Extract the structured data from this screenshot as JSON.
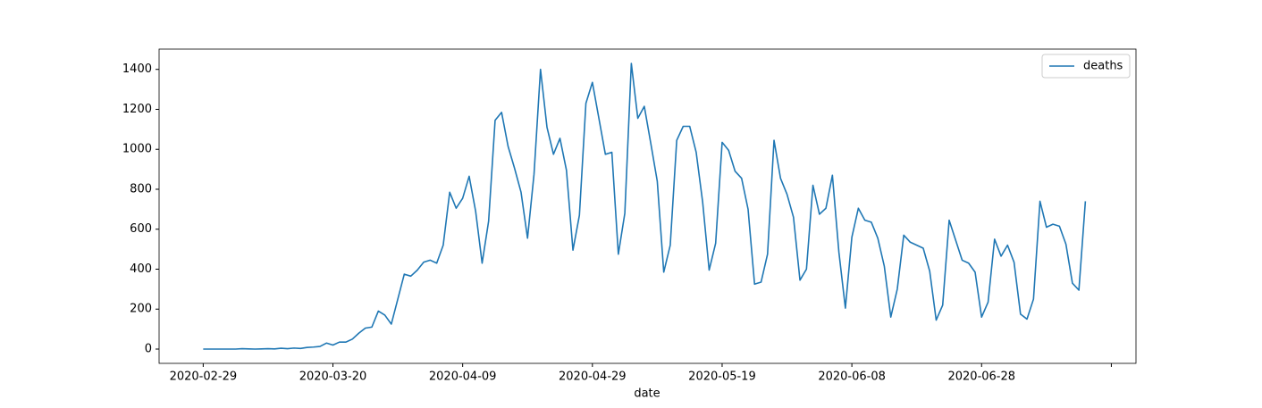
{
  "chart_data": {
    "type": "line",
    "xlabel": "date",
    "x": [
      "2020-02-29",
      "2020-03-01",
      "2020-03-02",
      "2020-03-03",
      "2020-03-04",
      "2020-03-05",
      "2020-03-06",
      "2020-03-07",
      "2020-03-08",
      "2020-03-09",
      "2020-03-10",
      "2020-03-11",
      "2020-03-12",
      "2020-03-13",
      "2020-03-14",
      "2020-03-15",
      "2020-03-16",
      "2020-03-17",
      "2020-03-18",
      "2020-03-19",
      "2020-03-20",
      "2020-03-21",
      "2020-03-22",
      "2020-03-23",
      "2020-03-24",
      "2020-03-25",
      "2020-03-26",
      "2020-03-27",
      "2020-03-28",
      "2020-03-29",
      "2020-03-30",
      "2020-03-31",
      "2020-04-01",
      "2020-04-02",
      "2020-04-03",
      "2020-04-04",
      "2020-04-05",
      "2020-04-06",
      "2020-04-07",
      "2020-04-08",
      "2020-04-09",
      "2020-04-10",
      "2020-04-11",
      "2020-04-12",
      "2020-04-13",
      "2020-04-14",
      "2020-04-15",
      "2020-04-16",
      "2020-04-17",
      "2020-04-18",
      "2020-04-19",
      "2020-04-20",
      "2020-04-21",
      "2020-04-22",
      "2020-04-23",
      "2020-04-24",
      "2020-04-25",
      "2020-04-26",
      "2020-04-27",
      "2020-04-28",
      "2020-04-29",
      "2020-04-30",
      "2020-05-01",
      "2020-05-02",
      "2020-05-03",
      "2020-05-04",
      "2020-05-05",
      "2020-05-06",
      "2020-05-07",
      "2020-05-08",
      "2020-05-09",
      "2020-05-10",
      "2020-05-11",
      "2020-05-12",
      "2020-05-13",
      "2020-05-14",
      "2020-05-15",
      "2020-05-16",
      "2020-05-17",
      "2020-05-18",
      "2020-05-19",
      "2020-05-20",
      "2020-05-21",
      "2020-05-22",
      "2020-05-23",
      "2020-05-24",
      "2020-05-25",
      "2020-05-26",
      "2020-05-27",
      "2020-05-28",
      "2020-05-29",
      "2020-05-30",
      "2020-05-31",
      "2020-06-01",
      "2020-06-02",
      "2020-06-03",
      "2020-06-04",
      "2020-06-05",
      "2020-06-06",
      "2020-06-07",
      "2020-06-08",
      "2020-06-09",
      "2020-06-10",
      "2020-06-11",
      "2020-06-12",
      "2020-06-13",
      "2020-06-14",
      "2020-06-15",
      "2020-06-16",
      "2020-06-17",
      "2020-06-18",
      "2020-06-19",
      "2020-06-20",
      "2020-06-21",
      "2020-06-22",
      "2020-06-23",
      "2020-06-24",
      "2020-06-25",
      "2020-06-26",
      "2020-06-27",
      "2020-06-28",
      "2020-06-29",
      "2020-06-30",
      "2020-07-01",
      "2020-07-02",
      "2020-07-03",
      "2020-07-04",
      "2020-07-05",
      "2020-07-06",
      "2020-07-07",
      "2020-07-08",
      "2020-07-09",
      "2020-07-10",
      "2020-07-11",
      "2020-07-12",
      "2020-07-13",
      "2020-07-14"
    ],
    "series": [
      {
        "name": "deaths",
        "color": "#1f77b4",
        "values": [
          0,
          0,
          0,
          0,
          0,
          0,
          2,
          1,
          0,
          1,
          2,
          1,
          4,
          2,
          5,
          3,
          8,
          10,
          13,
          30,
          20,
          35,
          35,
          50,
          80,
          105,
          110,
          190,
          170,
          125,
          250,
          375,
          365,
          395,
          435,
          445,
          430,
          520,
          785,
          705,
          755,
          865,
          690,
          430,
          640,
          1145,
          1185,
          1015,
          905,
          785,
          555,
          875,
          1400,
          1110,
          975,
          1055,
          895,
          495,
          670,
          1230,
          1335,
          1155,
          975,
          985,
          475,
          680,
          1430,
          1155,
          1215,
          1030,
          840,
          385,
          520,
          1045,
          1115,
          1115,
          985,
          735,
          395,
          530,
          1035,
          995,
          890,
          855,
          700,
          325,
          335,
          475,
          1045,
          855,
          775,
          660,
          345,
          400,
          820,
          675,
          705,
          870,
          485,
          205,
          560,
          705,
          645,
          635,
          555,
          415,
          160,
          300,
          570,
          535,
          520,
          505,
          390,
          145,
          220,
          645,
          545,
          445,
          430,
          385,
          160,
          235,
          550,
          465,
          520,
          435,
          175,
          150,
          250,
          740,
          610,
          625,
          615,
          525,
          330,
          295,
          740
        ]
      }
    ],
    "xlim": [
      "2020-02-22T04:48",
      "2020-07-21T19:12"
    ],
    "xticks": [
      "2020-02-29",
      "2020-03-20",
      "2020-04-09",
      "2020-04-29",
      "2020-05-19",
      "2020-06-08",
      "2020-06-28",
      {
        "value": "2020-07-18",
        "label": null
      }
    ],
    "ylim": [
      -71.5,
      1501.5
    ],
    "yticks": [
      0,
      200,
      400,
      600,
      800,
      1000,
      1200,
      1400
    ],
    "grid": false,
    "legend": "upper right"
  }
}
